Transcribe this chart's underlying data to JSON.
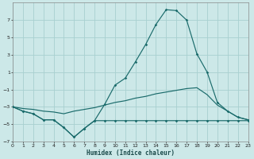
{
  "xlabel": "Humidex (Indice chaleur)",
  "bg_color": "#cce8e8",
  "grid_color": "#a8d0d0",
  "line_color": "#1a6b6b",
  "xmin": 0,
  "xmax": 23,
  "ymin": -7,
  "ymax": 9,
  "yticks": [
    -7,
    -5,
    -3,
    -1,
    1,
    3,
    5,
    7
  ],
  "xticks": [
    0,
    1,
    2,
    3,
    4,
    5,
    6,
    7,
    8,
    9,
    10,
    11,
    12,
    13,
    14,
    15,
    16,
    17,
    18,
    19,
    20,
    21,
    22,
    23
  ],
  "line1_x": [
    0,
    1,
    2,
    3,
    4,
    5,
    6,
    7,
    8,
    9,
    10,
    11,
    12,
    13,
    14,
    15,
    16,
    17,
    18,
    19,
    20,
    21,
    22,
    23
  ],
  "line1_y": [
    -3.0,
    -3.5,
    -3.8,
    -4.5,
    -4.5,
    -5.4,
    -6.5,
    -5.5,
    -4.6,
    -4.6,
    -4.6,
    -4.6,
    -4.6,
    -4.6,
    -4.6,
    -4.6,
    -4.6,
    -4.6,
    -4.6,
    -4.6,
    -4.6,
    -4.6,
    -4.6,
    -4.6
  ],
  "line2_x": [
    0,
    1,
    2,
    3,
    4,
    5,
    6,
    7,
    8,
    9,
    10,
    11,
    12,
    13,
    14,
    15,
    16,
    17,
    18,
    19,
    20,
    21,
    22,
    23
  ],
  "line2_y": [
    -3.0,
    -3.5,
    -3.8,
    -4.5,
    -4.5,
    -5.4,
    -6.5,
    -5.5,
    -4.6,
    -2.7,
    -0.5,
    0.3,
    2.2,
    4.2,
    6.5,
    8.2,
    8.1,
    7.0,
    3.1,
    1.0,
    -2.5,
    -3.5,
    -4.2,
    -4.5
  ],
  "line3_x": [
    0,
    1,
    2,
    3,
    4,
    5,
    6,
    7,
    8,
    9,
    10,
    11,
    12,
    13,
    14,
    15,
    16,
    17,
    18,
    19,
    20,
    21,
    22,
    23
  ],
  "line3_y": [
    -3.0,
    -3.2,
    -3.3,
    -3.5,
    -3.6,
    -3.8,
    -3.5,
    -3.3,
    -3.1,
    -2.8,
    -2.5,
    -2.3,
    -2.0,
    -1.8,
    -1.5,
    -1.3,
    -1.1,
    -0.9,
    -0.8,
    -1.6,
    -2.8,
    -3.5,
    -4.2,
    -4.5
  ]
}
